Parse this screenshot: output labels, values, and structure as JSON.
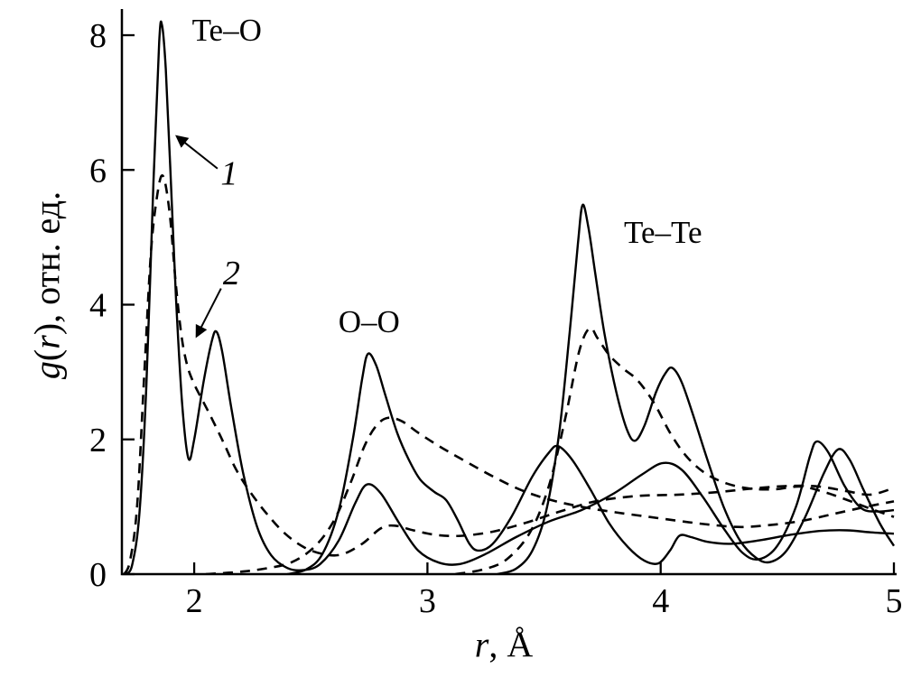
{
  "figure": {
    "type": "scientific-line-plot",
    "background": "#ffffff",
    "ink": "#000000"
  },
  "labels": {
    "y_func": "g",
    "y_open": "(",
    "y_var": "r",
    "y_close_unit": "), отн. ед.",
    "x_var": "r",
    "x_unit": ", Å"
  },
  "chart_data": {
    "type": "line",
    "title": "",
    "xlabel": "r, Å",
    "ylabel": "g(r), отн. ед.",
    "xlim": [
      1.69,
      5.0
    ],
    "ylim": [
      0,
      8
    ],
    "x_ticks": [
      2,
      3,
      4,
      5
    ],
    "y_ticks": [
      0,
      2,
      4,
      6,
      8
    ],
    "grid": false,
    "legend": "1 = solid curves, 2 = dashed curves",
    "annotations": [
      {
        "text": "Te–O",
        "x": 2.14,
        "y": 8.08,
        "style": "normal"
      },
      {
        "text": "O–O",
        "x": 2.75,
        "y": 3.75,
        "style": "normal"
      },
      {
        "text": "Te–Te",
        "x": 4.01,
        "y": 5.08,
        "style": "normal"
      },
      {
        "text": "1",
        "x": 2.15,
        "y": 5.94,
        "style": "italic"
      },
      {
        "text": "2",
        "x": 2.16,
        "y": 4.46,
        "style": "italic"
      }
    ],
    "arrows": [
      {
        "from": [
          2.1,
          6.02
        ],
        "to": [
          1.925,
          6.5
        ]
      },
      {
        "from": [
          2.115,
          4.24
        ],
        "to": [
          2.01,
          3.53
        ]
      }
    ],
    "series": [
      {
        "name": "Te–O curve 1",
        "line": "solid",
        "points": [
          [
            1.71,
            0
          ],
          [
            1.735,
            0.15
          ],
          [
            1.765,
            0.9
          ],
          [
            1.795,
            2.8
          ],
          [
            1.825,
            5.8
          ],
          [
            1.85,
            7.9
          ],
          [
            1.862,
            8.15
          ],
          [
            1.878,
            7.5
          ],
          [
            1.898,
            6.0
          ],
          [
            1.922,
            4.1
          ],
          [
            1.948,
            2.55
          ],
          [
            1.975,
            1.72
          ],
          [
            2.0,
            2.0
          ],
          [
            2.04,
            2.85
          ],
          [
            2.075,
            3.45
          ],
          [
            2.095,
            3.6
          ],
          [
            2.12,
            3.3
          ],
          [
            2.16,
            2.45
          ],
          [
            2.21,
            1.5
          ],
          [
            2.27,
            0.7
          ],
          [
            2.33,
            0.28
          ],
          [
            2.4,
            0.09
          ],
          [
            2.47,
            0.06
          ],
          [
            2.54,
            0.15
          ],
          [
            2.62,
            0.5
          ],
          [
            2.69,
            1.05
          ],
          [
            2.74,
            1.33
          ],
          [
            2.8,
            1.2
          ],
          [
            2.88,
            0.75
          ],
          [
            2.96,
            0.35
          ],
          [
            3.05,
            0.17
          ],
          [
            3.14,
            0.15
          ],
          [
            3.25,
            0.3
          ],
          [
            3.38,
            0.55
          ],
          [
            3.52,
            0.78
          ],
          [
            3.66,
            0.95
          ],
          [
            3.8,
            1.2
          ],
          [
            3.92,
            1.48
          ],
          [
            4.01,
            1.65
          ],
          [
            4.09,
            1.55
          ],
          [
            4.18,
            1.15
          ],
          [
            4.27,
            0.68
          ],
          [
            4.35,
            0.32
          ],
          [
            4.42,
            0.22
          ],
          [
            4.5,
            0.42
          ],
          [
            4.58,
            1.0
          ],
          [
            4.64,
            1.75
          ],
          [
            4.67,
            1.97
          ],
          [
            4.72,
            1.8
          ],
          [
            4.79,
            1.3
          ],
          [
            4.86,
            0.98
          ],
          [
            4.93,
            0.93
          ],
          [
            5.0,
            0.95
          ]
        ]
      },
      {
        "name": "O–O curve 1",
        "line": "solid",
        "points": [
          [
            2.4,
            0
          ],
          [
            2.48,
            0.07
          ],
          [
            2.55,
            0.3
          ],
          [
            2.62,
            0.95
          ],
          [
            2.68,
            2.0
          ],
          [
            2.72,
            2.9
          ],
          [
            2.745,
            3.27
          ],
          [
            2.78,
            3.1
          ],
          [
            2.82,
            2.65
          ],
          [
            2.87,
            2.1
          ],
          [
            2.92,
            1.7
          ],
          [
            2.97,
            1.4
          ],
          [
            3.03,
            1.22
          ],
          [
            3.08,
            1.1
          ],
          [
            3.13,
            0.8
          ],
          [
            3.18,
            0.45
          ],
          [
            3.22,
            0.35
          ],
          [
            3.28,
            0.45
          ],
          [
            3.36,
            0.85
          ],
          [
            3.45,
            1.45
          ],
          [
            3.52,
            1.8
          ],
          [
            3.56,
            1.9
          ],
          [
            3.62,
            1.7
          ],
          [
            3.7,
            1.25
          ],
          [
            3.78,
            0.75
          ],
          [
            3.86,
            0.4
          ],
          [
            3.93,
            0.2
          ],
          [
            3.99,
            0.16
          ],
          [
            4.04,
            0.35
          ],
          [
            4.08,
            0.57
          ],
          [
            4.13,
            0.55
          ],
          [
            4.2,
            0.48
          ],
          [
            4.3,
            0.45
          ],
          [
            4.42,
            0.5
          ],
          [
            4.55,
            0.58
          ],
          [
            4.68,
            0.64
          ],
          [
            4.8,
            0.65
          ],
          [
            4.9,
            0.62
          ],
          [
            5.0,
            0.6
          ]
        ]
      },
      {
        "name": "Te–Te curve 1",
        "line": "solid",
        "points": [
          [
            3.3,
            0
          ],
          [
            3.38,
            0.08
          ],
          [
            3.45,
            0.35
          ],
          [
            3.51,
            0.95
          ],
          [
            3.565,
            2.1
          ],
          [
            3.61,
            3.6
          ],
          [
            3.645,
            4.9
          ],
          [
            3.665,
            5.48
          ],
          [
            3.69,
            5.15
          ],
          [
            3.72,
            4.45
          ],
          [
            3.76,
            3.55
          ],
          [
            3.81,
            2.7
          ],
          [
            3.855,
            2.15
          ],
          [
            3.89,
            1.98
          ],
          [
            3.93,
            2.2
          ],
          [
            3.98,
            2.7
          ],
          [
            4.02,
            2.98
          ],
          [
            4.05,
            3.06
          ],
          [
            4.09,
            2.85
          ],
          [
            4.14,
            2.35
          ],
          [
            4.2,
            1.7
          ],
          [
            4.27,
            1.0
          ],
          [
            4.34,
            0.5
          ],
          [
            4.41,
            0.24
          ],
          [
            4.47,
            0.18
          ],
          [
            4.54,
            0.35
          ],
          [
            4.62,
            0.85
          ],
          [
            4.7,
            1.5
          ],
          [
            4.76,
            1.85
          ],
          [
            4.81,
            1.7
          ],
          [
            4.87,
            1.25
          ],
          [
            4.94,
            0.75
          ],
          [
            5.0,
            0.42
          ]
        ]
      },
      {
        "name": "Te–O curve 2",
        "line": "dashed",
        "points": [
          [
            1.7,
            0
          ],
          [
            1.725,
            0.2
          ],
          [
            1.755,
            1.0
          ],
          [
            1.785,
            2.9
          ],
          [
            1.815,
            4.8
          ],
          [
            1.845,
            5.7
          ],
          [
            1.868,
            5.9
          ],
          [
            1.895,
            5.35
          ],
          [
            1.92,
            4.35
          ],
          [
            1.945,
            3.55
          ],
          [
            1.97,
            3.1
          ],
          [
            2.0,
            2.82
          ],
          [
            2.04,
            2.55
          ],
          [
            2.08,
            2.28
          ],
          [
            2.13,
            1.92
          ],
          [
            2.18,
            1.55
          ],
          [
            2.24,
            1.22
          ],
          [
            2.31,
            0.9
          ],
          [
            2.39,
            0.6
          ],
          [
            2.47,
            0.4
          ],
          [
            2.55,
            0.3
          ],
          [
            2.63,
            0.29
          ],
          [
            2.72,
            0.45
          ],
          [
            2.8,
            0.68
          ],
          [
            2.86,
            0.72
          ],
          [
            2.94,
            0.65
          ],
          [
            3.04,
            0.58
          ],
          [
            3.15,
            0.57
          ],
          [
            3.28,
            0.63
          ],
          [
            3.42,
            0.76
          ],
          [
            3.56,
            0.92
          ],
          [
            3.72,
            1.08
          ],
          [
            3.9,
            1.16
          ],
          [
            4.08,
            1.18
          ],
          [
            4.25,
            1.22
          ],
          [
            4.42,
            1.28
          ],
          [
            4.56,
            1.31
          ],
          [
            4.68,
            1.3
          ],
          [
            4.8,
            1.23
          ],
          [
            4.9,
            1.18
          ],
          [
            5.0,
            1.28
          ]
        ]
      },
      {
        "name": "O–O curve 2",
        "line": "dashed",
        "points": [
          [
            2.05,
            0
          ],
          [
            2.18,
            0.03
          ],
          [
            2.3,
            0.08
          ],
          [
            2.42,
            0.18
          ],
          [
            2.52,
            0.42
          ],
          [
            2.6,
            0.8
          ],
          [
            2.67,
            1.35
          ],
          [
            2.73,
            1.9
          ],
          [
            2.78,
            2.2
          ],
          [
            2.83,
            2.32
          ],
          [
            2.89,
            2.27
          ],
          [
            2.96,
            2.1
          ],
          [
            3.05,
            1.9
          ],
          [
            3.15,
            1.7
          ],
          [
            3.27,
            1.47
          ],
          [
            3.4,
            1.25
          ],
          [
            3.53,
            1.1
          ],
          [
            3.66,
            1.0
          ],
          [
            3.8,
            0.92
          ],
          [
            3.95,
            0.85
          ],
          [
            4.1,
            0.78
          ],
          [
            4.22,
            0.73
          ],
          [
            4.35,
            0.7
          ],
          [
            4.5,
            0.74
          ],
          [
            4.62,
            0.8
          ],
          [
            4.75,
            0.9
          ],
          [
            4.88,
            1.0
          ],
          [
            5.0,
            1.08
          ]
        ]
      },
      {
        "name": "Te–Te curve 2",
        "line": "dashed",
        "points": [
          [
            3.12,
            0
          ],
          [
            3.24,
            0.07
          ],
          [
            3.34,
            0.22
          ],
          [
            3.44,
            0.62
          ],
          [
            3.52,
            1.3
          ],
          [
            3.59,
            2.3
          ],
          [
            3.65,
            3.3
          ],
          [
            3.695,
            3.65
          ],
          [
            3.73,
            3.5
          ],
          [
            3.78,
            3.25
          ],
          [
            3.84,
            3.05
          ],
          [
            3.9,
            2.88
          ],
          [
            3.97,
            2.55
          ],
          [
            4.04,
            2.1
          ],
          [
            4.11,
            1.75
          ],
          [
            4.19,
            1.5
          ],
          [
            4.28,
            1.35
          ],
          [
            4.38,
            1.27
          ],
          [
            4.49,
            1.26
          ],
          [
            4.6,
            1.3
          ],
          [
            4.7,
            1.22
          ],
          [
            4.8,
            1.1
          ],
          [
            4.9,
            0.97
          ],
          [
            5.0,
            0.85
          ]
        ]
      }
    ]
  }
}
